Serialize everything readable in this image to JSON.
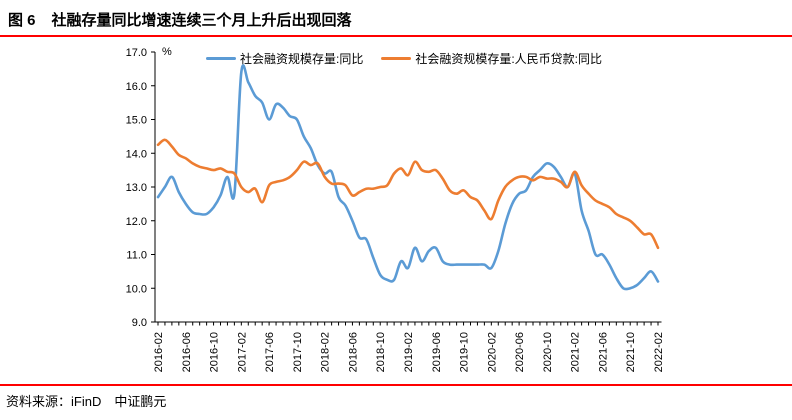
{
  "header": {
    "title_prefix": "图 6",
    "title_text": "社融存量同比增速连续三个月上升后出现回落"
  },
  "footer": {
    "source": "资料来源：iFinD　中证鹏元"
  },
  "colors": {
    "series_tsf": "#5B9BD5",
    "series_loan": "#ED7D31",
    "rule_red": "#FF0000",
    "axis": "#000000"
  },
  "chart_data": {
    "type": "line",
    "title": "社融存量同比增速连续三个月上升后出现回落",
    "unit": "%",
    "grid": false,
    "legend_position": "top",
    "y_axis": {
      "min": 9.0,
      "max": 17.0,
      "step": 1.0,
      "tick_labels": [
        "17.0",
        "16.0",
        "15.0",
        "14.0",
        "13.0",
        "12.0",
        "11.0",
        "10.0",
        "9.0"
      ]
    },
    "x_tick_labels": [
      "2016-02",
      "2016-06",
      "2016-10",
      "2017-02",
      "2017-06",
      "2017-10",
      "2018-02",
      "2018-06",
      "2018-10",
      "2019-02",
      "2019-06",
      "2019-10",
      "2020-02",
      "2020-06",
      "2020-10",
      "2021-02",
      "2021-06",
      "2021-10",
      "2022-02"
    ],
    "categories": [
      "2016-02",
      "2016-03",
      "2016-04",
      "2016-05",
      "2016-06",
      "2016-07",
      "2016-08",
      "2016-09",
      "2016-10",
      "2016-11",
      "2016-12",
      "2017-01",
      "2017-02",
      "2017-03",
      "2017-04",
      "2017-05",
      "2017-06",
      "2017-07",
      "2017-08",
      "2017-09",
      "2017-10",
      "2017-11",
      "2017-12",
      "2018-01",
      "2018-02",
      "2018-03",
      "2018-04",
      "2018-05",
      "2018-06",
      "2018-07",
      "2018-08",
      "2018-09",
      "2018-10",
      "2018-11",
      "2018-12",
      "2019-01",
      "2019-02",
      "2019-03",
      "2019-04",
      "2019-05",
      "2019-06",
      "2019-07",
      "2019-08",
      "2019-09",
      "2019-10",
      "2019-11",
      "2019-12",
      "2020-01",
      "2020-02",
      "2020-03",
      "2020-04",
      "2020-05",
      "2020-06",
      "2020-07",
      "2020-08",
      "2020-09",
      "2020-10",
      "2020-11",
      "2020-12",
      "2021-01",
      "2021-02",
      "2021-03",
      "2021-04",
      "2021-05",
      "2021-06",
      "2021-07",
      "2021-08",
      "2021-09",
      "2021-10",
      "2021-11",
      "2021-12",
      "2022-01",
      "2022-02"
    ],
    "series": [
      {
        "name": "社会融资规模存量:同比",
        "color": "#5B9BD5",
        "values": [
          12.7,
          13.0,
          13.3,
          12.85,
          12.5,
          12.25,
          12.2,
          12.2,
          12.4,
          12.75,
          13.3,
          12.8,
          16.4,
          16.1,
          15.7,
          15.5,
          15.0,
          15.45,
          15.35,
          15.1,
          15.0,
          14.5,
          14.15,
          13.65,
          13.4,
          13.45,
          12.7,
          12.45,
          12.0,
          11.5,
          11.45,
          10.9,
          10.4,
          10.25,
          10.25,
          10.8,
          10.6,
          11.2,
          10.8,
          11.1,
          11.2,
          10.8,
          10.7,
          10.7,
          10.7,
          10.7,
          10.7,
          10.7,
          10.6,
          11.1,
          11.9,
          12.5,
          12.8,
          12.9,
          13.3,
          13.5,
          13.7,
          13.6,
          13.3,
          13.0,
          13.4,
          12.3,
          11.7,
          11.0,
          11.0,
          10.7,
          10.3,
          10.0,
          10.0,
          10.1,
          10.3,
          10.5,
          10.2
        ]
      },
      {
        "name": "社会融资规模存量:人民币贷款:同比",
        "color": "#ED7D31",
        "values": [
          14.25,
          14.4,
          14.2,
          13.95,
          13.85,
          13.7,
          13.6,
          13.55,
          13.5,
          13.55,
          13.45,
          13.4,
          13.0,
          12.85,
          12.95,
          12.55,
          13.05,
          13.15,
          13.2,
          13.3,
          13.5,
          13.75,
          13.65,
          13.7,
          13.3,
          13.1,
          13.1,
          13.05,
          12.75,
          12.85,
          12.95,
          12.95,
          13.0,
          13.05,
          13.4,
          13.55,
          13.35,
          13.75,
          13.5,
          13.45,
          13.5,
          13.25,
          12.9,
          12.8,
          12.9,
          12.7,
          12.6,
          12.3,
          12.05,
          12.6,
          13.0,
          13.2,
          13.3,
          13.3,
          13.2,
          13.3,
          13.25,
          13.25,
          13.15,
          13.0,
          13.45,
          13.05,
          12.8,
          12.6,
          12.5,
          12.4,
          12.2,
          12.1,
          12.0,
          11.8,
          11.6,
          11.6,
          11.2
        ]
      }
    ]
  }
}
